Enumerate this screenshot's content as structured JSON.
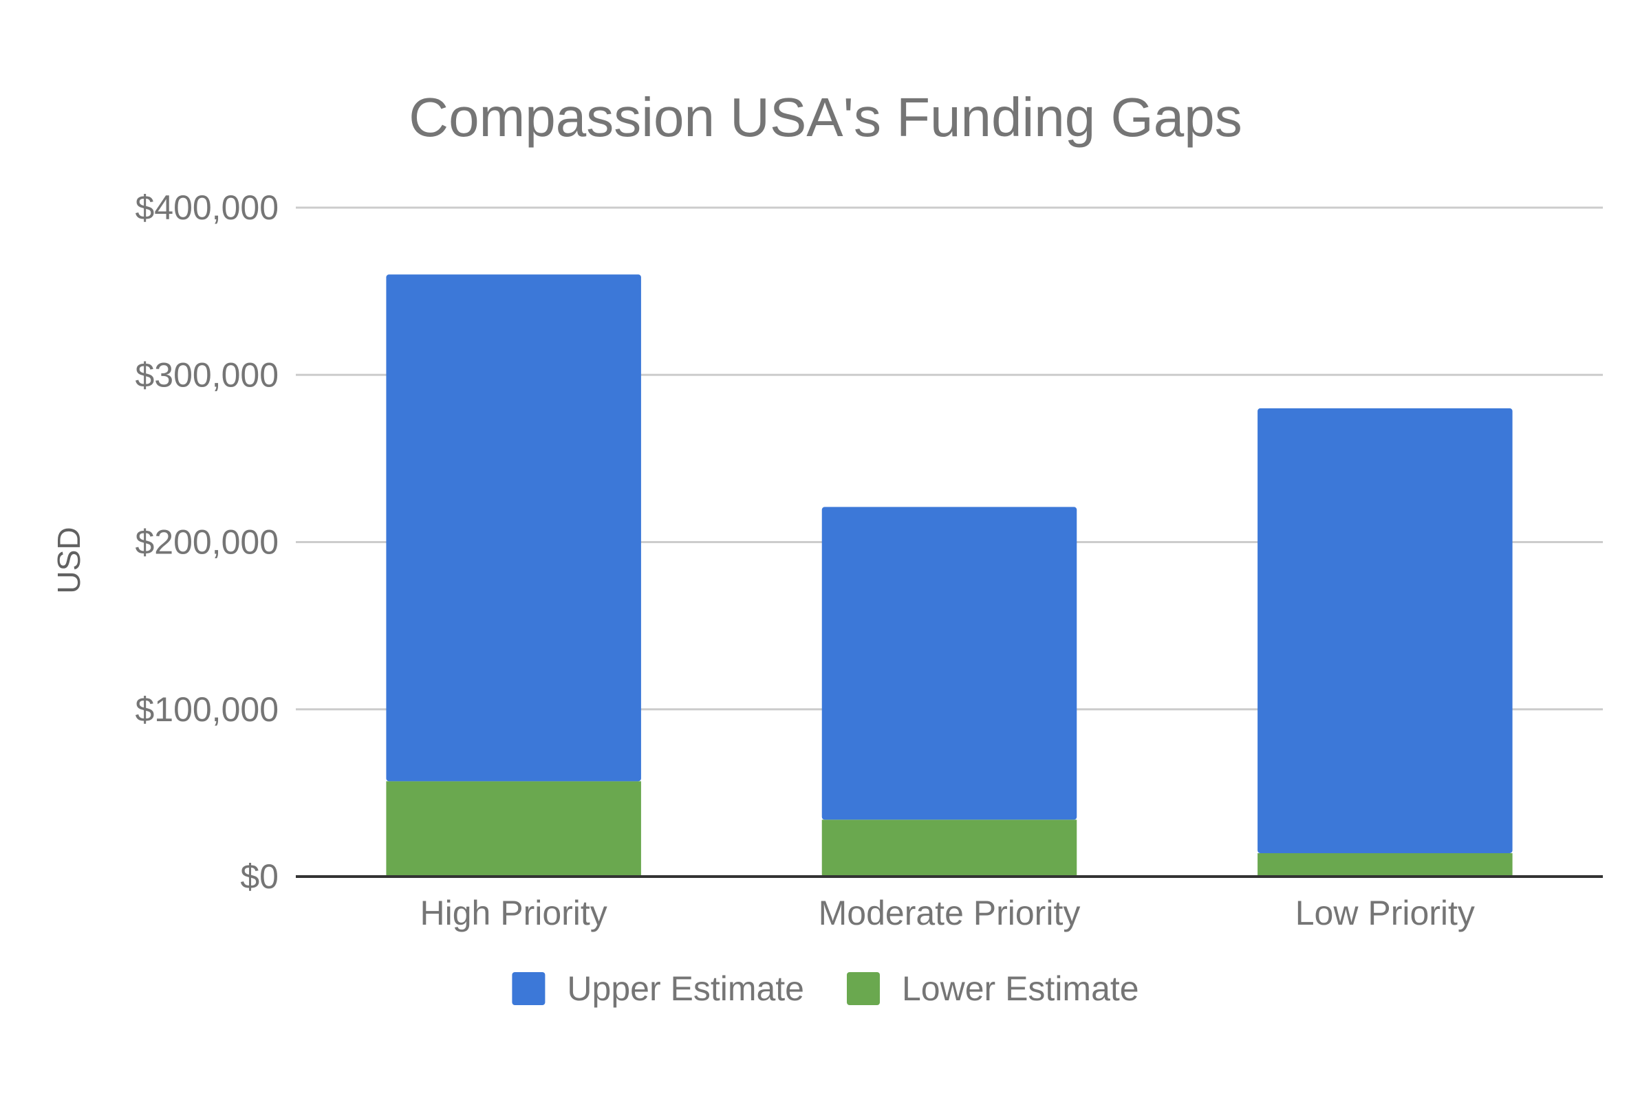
{
  "chart_data": {
    "type": "bar",
    "stacked": true,
    "title": "Compassion USA's Funding Gaps",
    "xlabel": "",
    "ylabel": "USD",
    "categories": [
      "High Priority",
      "Moderate Priority",
      "Low Priority"
    ],
    "series": [
      {
        "name": "Lower Estimate",
        "values": [
          57000,
          34000,
          14000
        ],
        "color": "#6aa84f"
      },
      {
        "name": "Upper Estimate",
        "values": [
          303000,
          187000,
          266000
        ],
        "color": "#3c78d8"
      }
    ],
    "ylim": [
      0,
      400000
    ],
    "yticks": [
      0,
      100000,
      200000,
      300000,
      400000
    ],
    "ytick_labels": [
      "$0",
      "$100,000",
      "$200,000",
      "$300,000",
      "$400,000"
    ],
    "legend": {
      "position": "bottom",
      "items": [
        {
          "label": "Upper Estimate",
          "color": "#3c78d8"
        },
        {
          "label": "Lower Estimate",
          "color": "#6aa84f"
        }
      ]
    },
    "grid": true
  }
}
